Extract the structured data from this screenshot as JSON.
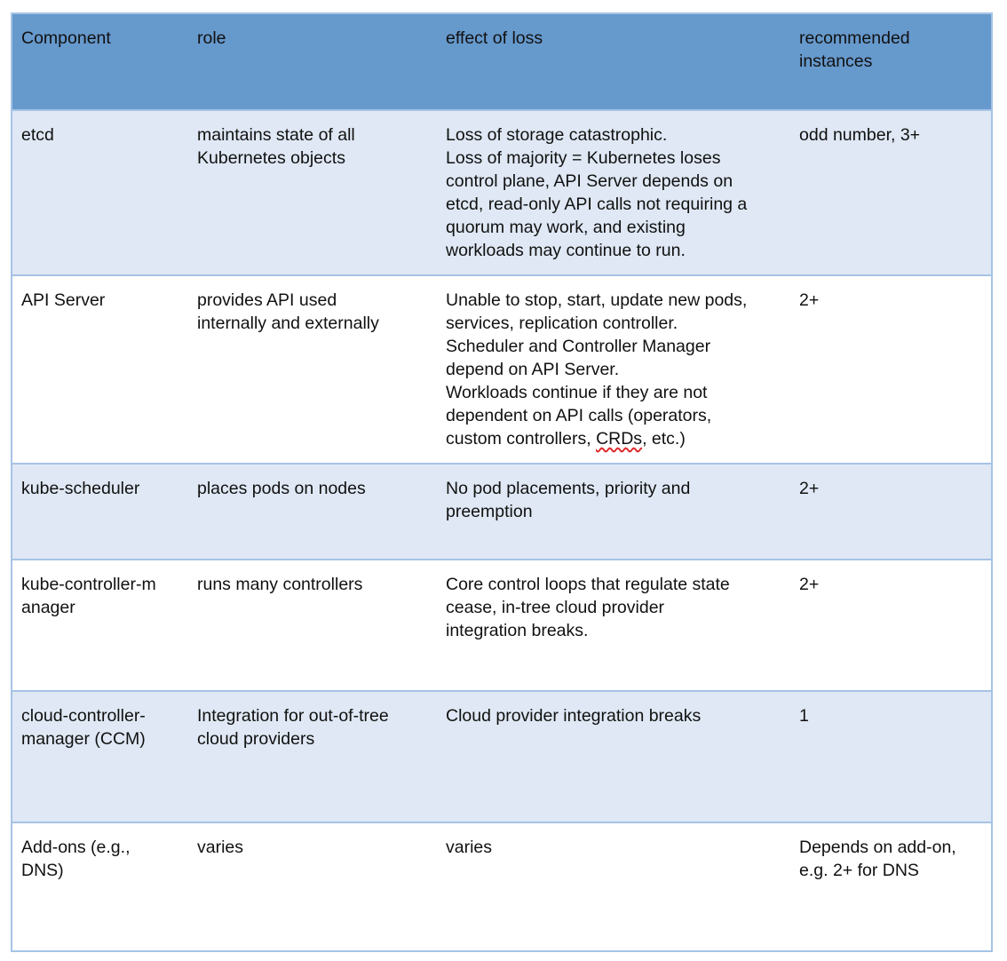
{
  "header": [
    "Component",
    "role",
    "effect of loss",
    "recommended instances"
  ],
  "header_lines": [
    [
      "Component"
    ],
    [
      "role"
    ],
    [
      "effect of loss"
    ],
    [
      "recommended",
      "instances"
    ]
  ],
  "rows": [
    {
      "cells": [
        [
          "etcd"
        ],
        [
          "maintains state of all",
          "Kubernetes objects"
        ],
        [
          "Loss of storage catastrophic.",
          "Loss of majority = Kubernetes loses",
          "control plane, API Server depends on",
          "etcd, read-only API calls not requiring a",
          "quorum may work, and existing",
          "workloads may continue to run."
        ],
        [
          "odd number, 3+"
        ]
      ]
    },
    {
      "cells": [
        [
          "API Server"
        ],
        [
          "provides API used",
          "internally and externally"
        ],
        [
          "Unable to stop, start, update new pods,",
          "services, replication controller.",
          "Scheduler and Controller Manager",
          "depend on API Server.",
          "Workloads continue if they are not",
          "dependent on API calls (operators,",
          "custom controllers, CRDs, etc.)"
        ],
        [
          "2+"
        ]
      ]
    },
    {
      "cells": [
        [
          "kube-scheduler"
        ],
        [
          "places pods on nodes"
        ],
        [
          "No pod placements, priority and",
          "preemption"
        ],
        [
          "2+"
        ]
      ]
    },
    {
      "cells": [
        [
          "kube-controller-m",
          "anager"
        ],
        [
          "runs many controllers"
        ],
        [
          "Core control loops that regulate state",
          "cease, in-tree cloud provider",
          "integration breaks."
        ],
        [
          "2+"
        ]
      ]
    },
    {
      "cells": [
        [
          "cloud-controller-",
          "manager (CCM)"
        ],
        [
          "Integration for out-of-tree",
          "cloud providers"
        ],
        [
          "Cloud provider integration breaks"
        ],
        [
          "1"
        ]
      ]
    },
    {
      "cells": [
        [
          "Add-ons (e.g.,",
          "DNS)"
        ],
        [
          "varies"
        ],
        [
          "varies"
        ],
        [
          "Depends on add-on,",
          "e.g. 2+ for DNS"
        ]
      ]
    }
  ],
  "colors": {
    "header_bg": "#6699cc",
    "alt_row_bg": "#dfe8f4",
    "border": "#a6c3e6",
    "spellcheck_underline": "#dd2222"
  }
}
